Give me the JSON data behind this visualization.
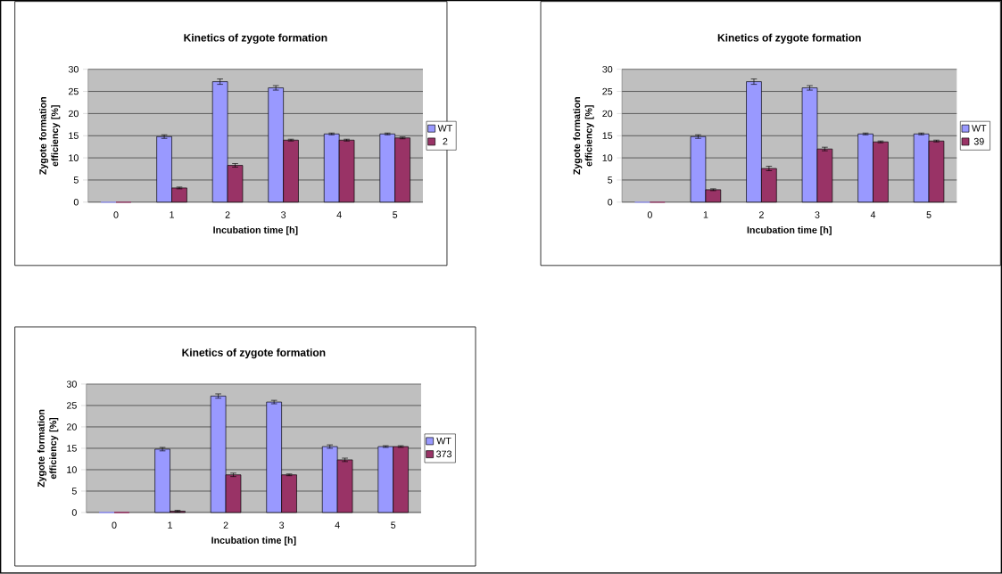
{
  "chart_data": [
    {
      "type": "bar",
      "title": "Kinetics of zygote formation",
      "xlabel": "Incubation time [h]",
      "ylabel": "Zygote formation efficiency [%]",
      "categories": [
        "0",
        "1",
        "2",
        "3",
        "4",
        "5"
      ],
      "ylim": [
        0,
        30
      ],
      "yticks": [
        0,
        5,
        10,
        15,
        20,
        25,
        30
      ],
      "grid": "y",
      "legend": "right",
      "series": [
        {
          "name": "WT",
          "color": "#9999ff",
          "values": [
            0,
            14.8,
            27.2,
            25.8,
            15.4,
            15.4
          ],
          "errors": [
            null,
            0.4,
            0.6,
            0.5,
            0.2,
            0.2
          ]
        },
        {
          "name": "2",
          "color": "#993366",
          "values": [
            0,
            3.2,
            8.3,
            14.0,
            14.0,
            14.5
          ],
          "errors": [
            null,
            0.2,
            0.4,
            0.2,
            0.2,
            0.2
          ]
        }
      ]
    },
    {
      "type": "bar",
      "title": "Kinetics of zygote formation",
      "xlabel": "Incubation time [h]",
      "ylabel": "Zygote formation efficiency [%]",
      "categories": [
        "0",
        "1",
        "2",
        "3",
        "4",
        "5"
      ],
      "ylim": [
        0,
        30
      ],
      "yticks": [
        0,
        5,
        10,
        15,
        20,
        25,
        30
      ],
      "grid": "y",
      "legend": "right",
      "series": [
        {
          "name": "WT",
          "color": "#9999ff",
          "values": [
            0,
            14.8,
            27.2,
            25.8,
            15.4,
            15.4
          ],
          "errors": [
            null,
            0.4,
            0.6,
            0.5,
            0.2,
            0.2
          ]
        },
        {
          "name": "39",
          "color": "#993366",
          "values": [
            0,
            2.8,
            7.6,
            12.0,
            13.6,
            13.8
          ],
          "errors": [
            null,
            0.2,
            0.5,
            0.4,
            0.2,
            0.2
          ]
        }
      ]
    },
    {
      "type": "bar",
      "title": "Kinetics of zygote formation",
      "xlabel": "Incubation time [h]",
      "ylabel": "Zygote formation efficiency [%]",
      "categories": [
        "0",
        "1",
        "2",
        "3",
        "4",
        "5"
      ],
      "ylim": [
        0,
        30
      ],
      "yticks": [
        0,
        5,
        10,
        15,
        20,
        25,
        30
      ],
      "grid": "y",
      "legend": "right",
      "series": [
        {
          "name": "WT",
          "color": "#9999ff",
          "values": [
            0,
            14.8,
            27.2,
            25.8,
            15.4,
            15.4
          ],
          "errors": [
            null,
            0.4,
            0.5,
            0.4,
            0.4,
            0.2
          ]
        },
        {
          "name": "373",
          "color": "#993366",
          "values": [
            0,
            0.3,
            8.8,
            8.8,
            12.3,
            15.4
          ],
          "errors": [
            null,
            0.2,
            0.4,
            0.2,
            0.4,
            0.2
          ]
        }
      ]
    }
  ]
}
